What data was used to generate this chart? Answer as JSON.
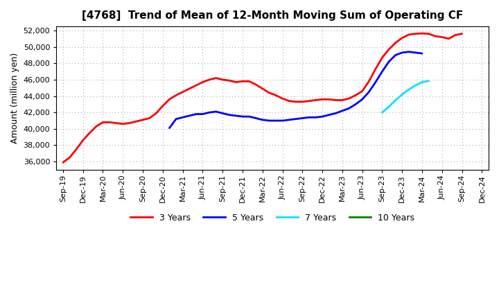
{
  "title": "[4768]  Trend of Mean of 12-Month Moving Sum of Operating CF",
  "ylabel": "Amount (million yen)",
  "ylim": [
    35000,
    52500
  ],
  "yticks": [
    36000,
    38000,
    40000,
    42000,
    44000,
    46000,
    48000,
    50000,
    52000
  ],
  "background_color": "#ffffff",
  "grid_color": "#aaaaaa",
  "series": {
    "3years": {
      "color": "#ff0000",
      "label": "3 Years",
      "x_start": 0,
      "y": [
        35900,
        36500,
        37500,
        38600,
        39500,
        40300,
        40800,
        40800,
        40700,
        40600,
        40700,
        40900,
        41100,
        41300,
        41900,
        42800,
        43600,
        44100,
        44500,
        44900,
        45300,
        45700,
        46000,
        46200,
        46000,
        45900,
        45700,
        45800,
        45800,
        45400,
        44900,
        44400,
        44100,
        43700,
        43400,
        43300,
        43300,
        43400,
        43500,
        43600,
        43600,
        43500,
        43500,
        43700,
        44100,
        44600,
        45800,
        47300,
        48700,
        49700,
        50500,
        51100,
        51500,
        51600,
        51650,
        51600,
        51300,
        51200,
        51000,
        51450,
        51600
      ]
    },
    "5years": {
      "color": "#0000ff",
      "label": "5 Years",
      "x_start": 16,
      "y": [
        40100,
        41200,
        41400,
        41600,
        41800,
        41800,
        42000,
        42100,
        41900,
        41700,
        41600,
        41500,
        41500,
        41300,
        41100,
        41000,
        41000,
        41000,
        41100,
        41200,
        41300,
        41400,
        41400,
        41500,
        41700,
        41900,
        42200,
        42500,
        43000,
        43600,
        44500,
        45700,
        47000,
        48200,
        49000,
        49300,
        49400,
        49300,
        49200
      ]
    },
    "7years": {
      "color": "#00e5ff",
      "label": "7 Years",
      "x_start": 48,
      "y": [
        42000,
        42700,
        43500,
        44200,
        44800,
        45300,
        45700,
        45850
      ]
    },
    "10years": {
      "color": "#008000",
      "label": "10 Years",
      "x_start": null,
      "y": []
    }
  },
  "xtick_labels": [
    "Sep-19",
    "Dec-19",
    "Mar-20",
    "Jun-20",
    "Sep-20",
    "Dec-20",
    "Mar-21",
    "Jun-21",
    "Sep-21",
    "Dec-21",
    "Mar-22",
    "Jun-22",
    "Sep-22",
    "Dec-22",
    "Mar-23",
    "Jun-23",
    "Sep-23",
    "Dec-23",
    "Mar-24",
    "Jun-24",
    "Sep-24",
    "Dec-24"
  ],
  "xtick_positions": [
    0,
    3,
    6,
    9,
    12,
    15,
    18,
    21,
    24,
    27,
    30,
    33,
    36,
    39,
    42,
    45,
    48,
    51,
    54,
    57,
    60,
    63
  ]
}
